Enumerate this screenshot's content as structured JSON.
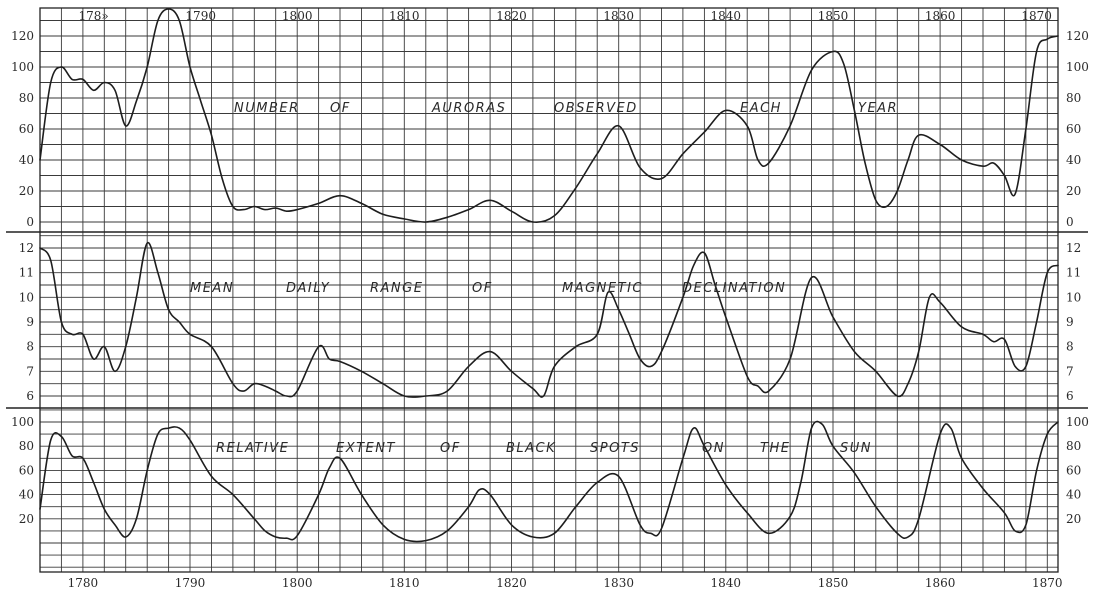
{
  "chart_data": [
    {
      "type": "line",
      "title_words": [
        "NUMBER",
        "OF",
        "AURORAS",
        "OBSERVED",
        "EACH",
        "YEAR"
      ],
      "ytick_labels": [
        "120",
        "100",
        "80",
        "60",
        "40",
        "20",
        "0"
      ],
      "ytick_labels_right": [
        "120",
        "100",
        "80",
        "60",
        "40",
        "20",
        "0"
      ],
      "ylim": [
        0,
        120
      ],
      "grid": true,
      "x": [
        1776,
        1777,
        1778,
        1779,
        1780,
        1781,
        1782,
        1783,
        1784,
        1785,
        1786,
        1787,
        1788,
        1789,
        1790,
        1791,
        1792,
        1793,
        1794,
        1795,
        1796,
        1797,
        1798,
        1799,
        1800,
        1802,
        1804,
        1806,
        1808,
        1810,
        1812,
        1814,
        1816,
        1818,
        1820,
        1822,
        1824,
        1826,
        1828,
        1830,
        1832,
        1834,
        1836,
        1838,
        1840,
        1842,
        1843,
        1844,
        1846,
        1848,
        1850,
        1851,
        1852,
        1853,
        1854,
        1855,
        1856,
        1857,
        1858,
        1860,
        1862,
        1864,
        1865,
        1866,
        1867,
        1868,
        1869,
        1870,
        1871
      ],
      "values": [
        40,
        90,
        100,
        92,
        92,
        85,
        90,
        85,
        62,
        78,
        100,
        130,
        140,
        130,
        100,
        78,
        56,
        28,
        10,
        8,
        10,
        8,
        9,
        7,
        8,
        12,
        17,
        12,
        5,
        2,
        0,
        3,
        8,
        14,
        7,
        0,
        4,
        22,
        44,
        62,
        35,
        28,
        44,
        58,
        72,
        62,
        40,
        38,
        62,
        98,
        110,
        102,
        72,
        38,
        14,
        10,
        20,
        40,
        56,
        50,
        40,
        36,
        38,
        30,
        18,
        60,
        110,
        118,
        120
      ]
    },
    {
      "type": "line",
      "title_words": [
        "MEAN",
        "DAILY",
        "RANGE",
        "OF",
        "MAGNETIC",
        "DECLINATION"
      ],
      "ytick_labels": [
        "12",
        "11",
        "10",
        "9",
        "8",
        "7",
        "6"
      ],
      "ytick_labels_right": [
        "12",
        "11",
        "10",
        "9",
        "8",
        "7",
        "6"
      ],
      "ylim": [
        6,
        12
      ],
      "grid": true,
      "x": [
        1776,
        1777,
        1778,
        1779,
        1780,
        1781,
        1782,
        1783,
        1784,
        1785,
        1786,
        1787,
        1788,
        1789,
        1790,
        1792,
        1794,
        1795,
        1796,
        1797,
        1798,
        1799,
        1800,
        1802,
        1803,
        1804,
        1806,
        1808,
        1810,
        1812,
        1814,
        1816,
        1818,
        1820,
        1822,
        1823,
        1824,
        1826,
        1828,
        1829,
        1830,
        1831,
        1832,
        1833,
        1834,
        1836,
        1837,
        1838,
        1839,
        1840,
        1842,
        1843,
        1844,
        1846,
        1848,
        1850,
        1852,
        1854,
        1856,
        1857,
        1858,
        1859,
        1860,
        1862,
        1864,
        1865,
        1866,
        1867,
        1868,
        1869,
        1870,
        1871
      ],
      "values": [
        12,
        11.5,
        9,
        8.5,
        8.5,
        7.5,
        8,
        7,
        8,
        10,
        12.2,
        11,
        9.5,
        9,
        8.5,
        8,
        6.5,
        6.2,
        6.5,
        6.4,
        6.2,
        6,
        6.2,
        8,
        7.5,
        7.4,
        7,
        6.5,
        6,
        6,
        6.2,
        7.2,
        7.8,
        7,
        6.3,
        6,
        7.2,
        8,
        8.5,
        10.2,
        9.5,
        8.5,
        7.5,
        7.2,
        7.8,
        10,
        11.3,
        11.8,
        10.5,
        9.2,
        6.8,
        6.4,
        6.2,
        7.5,
        10.8,
        9.2,
        7.8,
        7,
        6,
        6.5,
        7.8,
        10,
        9.8,
        8.8,
        8.5,
        8.2,
        8.3,
        7.2,
        7.2,
        9,
        11,
        11.3
      ]
    },
    {
      "type": "line",
      "title_words": [
        "RELATIVE",
        "EXTENT",
        "OF",
        "BLACK",
        "SPOTS",
        "ON",
        "THE",
        "SUN"
      ],
      "ytick_labels": [
        "100",
        "80",
        "60",
        "40",
        "20"
      ],
      "ytick_labels_right": [
        "100",
        "80",
        "60",
        "40",
        "20"
      ],
      "ylim": [
        0,
        100
      ],
      "grid": true,
      "x": [
        1776,
        1777,
        1778,
        1779,
        1780,
        1781,
        1782,
        1783,
        1784,
        1785,
        1786,
        1787,
        1788,
        1789,
        1790,
        1792,
        1794,
        1796,
        1797,
        1798,
        1799,
        1800,
        1802,
        1803,
        1804,
        1806,
        1808,
        1810,
        1812,
        1814,
        1816,
        1817,
        1818,
        1820,
        1822,
        1824,
        1826,
        1828,
        1830,
        1832,
        1833,
        1834,
        1836,
        1837,
        1838,
        1840,
        1842,
        1844,
        1846,
        1847,
        1848,
        1849,
        1850,
        1852,
        1854,
        1856,
        1857,
        1858,
        1860,
        1861,
        1862,
        1864,
        1866,
        1867,
        1868,
        1869,
        1870,
        1871
      ],
      "values": [
        28,
        85,
        88,
        72,
        70,
        50,
        28,
        15,
        5,
        20,
        60,
        90,
        95,
        95,
        85,
        55,
        40,
        20,
        10,
        5,
        4,
        6,
        40,
        62,
        70,
        40,
        15,
        3,
        2,
        10,
        30,
        44,
        40,
        15,
        5,
        8,
        30,
        50,
        55,
        15,
        8,
        12,
        70,
        95,
        80,
        48,
        25,
        8,
        22,
        50,
        95,
        98,
        80,
        58,
        30,
        8,
        5,
        20,
        90,
        95,
        70,
        45,
        25,
        10,
        15,
        60,
        90,
        100
      ]
    }
  ],
  "x_axis": {
    "top_tick_labels": [
      "178»",
      "1790",
      "1800",
      "1810",
      "1820",
      "1830",
      "1840",
      "1850",
      "1860",
      "1870"
    ],
    "bottom_tick_labels": [
      "1780",
      "1790",
      "1800",
      "1810",
      "1820",
      "1830",
      "1840",
      "1850",
      "1860",
      "1870"
    ],
    "xlim": [
      1776,
      1871
    ]
  }
}
